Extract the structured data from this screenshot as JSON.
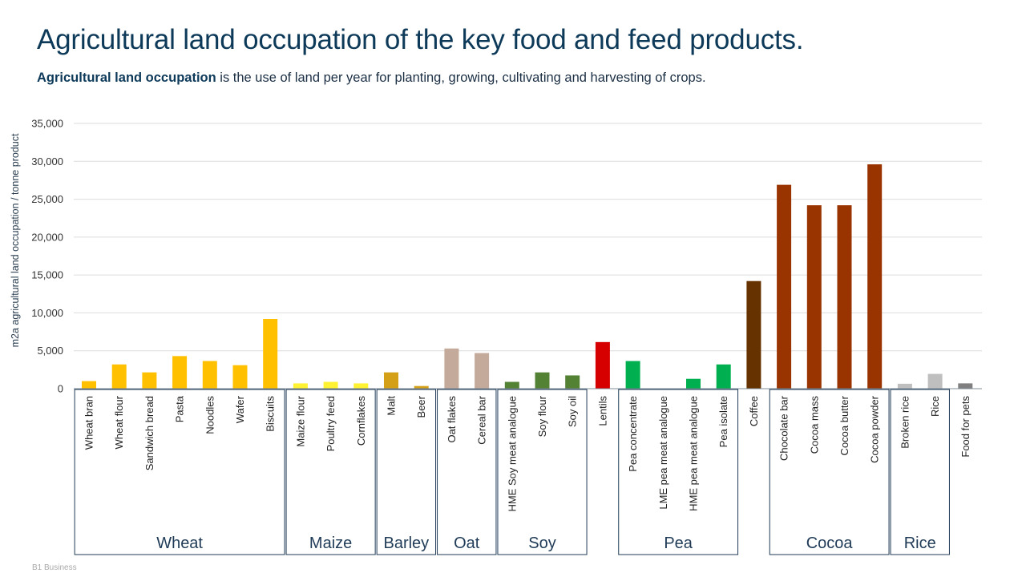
{
  "header": {
    "title": "Agricultural land occupation of the key food and feed products.",
    "subtitle_bold": "Agricultural land occupation",
    "subtitle_rest": " is the use of land per year for planting, growing, cultivating and harvesting of crops."
  },
  "footer": {
    "label": "B1 Business"
  },
  "chart_data": {
    "type": "bar",
    "title": "Agricultural land occupation of the key food and feed products.",
    "xlabel": "",
    "ylabel": "m2a agricultural land occupation / tonne product",
    "ylim": [
      0,
      35000
    ],
    "yticks": [
      0,
      5000,
      10000,
      15000,
      20000,
      25000,
      30000,
      35000
    ],
    "ytick_labels": [
      "0",
      "5,000",
      "10,000",
      "15,000",
      "20,000",
      "25,000",
      "30,000",
      "35,000"
    ],
    "grid": true,
    "categories": [
      "Wheat bran",
      "Wheat flour",
      "Sandwich bread",
      "Pasta",
      "Noodles",
      "Wafer",
      "Biscuits",
      "Maize flour",
      "Poultry feed",
      "Cornflakes",
      "Malt",
      "Beer",
      "Oat flakes",
      "Cereal bar",
      "HME Soy meat analogue",
      "Soy flour",
      "Soy oil",
      "Lentils",
      "Pea concentrate",
      "LME pea meat analogue",
      "HME pea meat analogue",
      "Pea isolate",
      "Coffee",
      "Chocolate bar",
      "Cocoa mass",
      "Cocoa butter",
      "Cocoa powder",
      "Broken rice",
      "Rice",
      "Food for pets"
    ],
    "values": [
      1000,
      3200,
      2150,
      4300,
      3650,
      3100,
      9200,
      700,
      900,
      700,
      2150,
      350,
      5300,
      4700,
      900,
      2150,
      1750,
      6150,
      3650,
      0,
      1300,
      3200,
      14200,
      26900,
      24200,
      24200,
      29600,
      650,
      1950,
      700
    ],
    "colors": [
      "#FFC000",
      "#FFC000",
      "#FFC000",
      "#FFC000",
      "#FFC000",
      "#FFC000",
      "#FFC000",
      "#FFF233",
      "#FFF233",
      "#FFF233",
      "#D4A017",
      "#D4A017",
      "#C4AA9A",
      "#C4AA9A",
      "#548235",
      "#548235",
      "#548235",
      "#D60000",
      "#00B050",
      "#00B050",
      "#00B050",
      "#00B050",
      "#653200",
      "#993300",
      "#993300",
      "#993300",
      "#993300",
      "#BFBFBF",
      "#BFBFBF",
      "#808080"
    ],
    "groups": [
      {
        "name": "Wheat",
        "start": 0,
        "end": 6
      },
      {
        "name": "Maize",
        "start": 7,
        "end": 9
      },
      {
        "name": "Barley",
        "start": 10,
        "end": 11
      },
      {
        "name": "Oat",
        "start": 12,
        "end": 13
      },
      {
        "name": "Soy",
        "start": 14,
        "end": 16
      },
      {
        "name": "Pea",
        "start": 18,
        "end": 21
      },
      {
        "name": "Cocoa",
        "start": 23,
        "end": 26
      },
      {
        "name": "Rice",
        "start": 27,
        "end": 28
      }
    ]
  }
}
